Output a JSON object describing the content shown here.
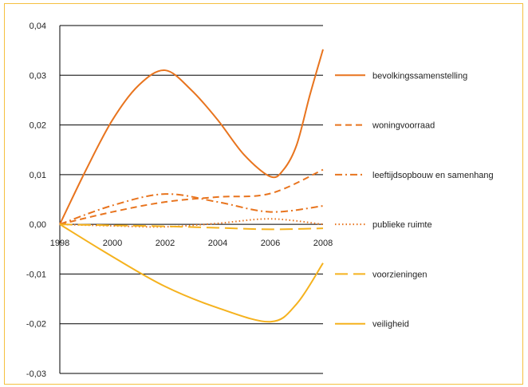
{
  "chart_data": {
    "type": "line",
    "title": "",
    "xlabel": "",
    "ylabel": "",
    "x": [
      1998,
      2000,
      2002,
      2004,
      2006,
      2008
    ],
    "x_tick_labels": [
      "1998",
      "2000",
      "2002",
      "2004",
      "2006",
      "2008"
    ],
    "xlim": [
      1998,
      2008
    ],
    "ylim": [
      -0.03,
      0.04
    ],
    "y_ticks": [
      0.04,
      0.03,
      0.02,
      0.01,
      0.0,
      -0.01,
      -0.02,
      -0.03
    ],
    "y_tick_labels": [
      "0,04",
      "0,03",
      "0,02",
      "0,01",
      "0,00",
      "-0,01",
      "-0,02",
      "-0,03"
    ],
    "grid": "horizontal",
    "legend_position": "right",
    "series": [
      {
        "name": "bevolkingssamenstelling",
        "color": "#e8741e",
        "dash": "solid",
        "points": [
          [
            1998,
            0.0
          ],
          [
            1999,
            0.011
          ],
          [
            2000,
            0.021
          ],
          [
            2001,
            0.028
          ],
          [
            2002,
            0.031
          ],
          [
            2003,
            0.027
          ],
          [
            2004,
            0.021
          ],
          [
            2005,
            0.014
          ],
          [
            2006,
            0.0096
          ],
          [
            2006.5,
            0.011
          ],
          [
            2007,
            0.016
          ],
          [
            2007.5,
            0.026
          ],
          [
            2008,
            0.0352
          ]
        ]
      },
      {
        "name": "woningvoorraad",
        "color": "#e8741e",
        "dash": "dashed",
        "points": [
          [
            1998,
            0.0
          ],
          [
            2000,
            0.0025
          ],
          [
            2002,
            0.0045
          ],
          [
            2004,
            0.0055
          ],
          [
            2006,
            0.0062
          ],
          [
            2008,
            0.011
          ]
        ]
      },
      {
        "name": "leeftijdsopbouw en samenhang",
        "color": "#e8741e",
        "dash": "dashdot",
        "points": [
          [
            1998,
            0.0
          ],
          [
            2000,
            0.0038
          ],
          [
            2002,
            0.0061
          ],
          [
            2004,
            0.0045
          ],
          [
            2006,
            0.0025
          ],
          [
            2008,
            0.0037
          ]
        ]
      },
      {
        "name": "publieke ruimte",
        "color": "#e8741e",
        "dash": "dotted",
        "points": [
          [
            1998,
            0.0
          ],
          [
            2000,
            -0.0003
          ],
          [
            2002,
            -0.0005
          ],
          [
            2004,
            0.0002
          ],
          [
            2006,
            0.0011
          ],
          [
            2008,
            0.0
          ]
        ]
      },
      {
        "name": "voorzieningen",
        "color": "#f5b21e",
        "dash": "longdash",
        "points": [
          [
            1998,
            0.0
          ],
          [
            2000,
            -0.0002
          ],
          [
            2002,
            -0.0004
          ],
          [
            2004,
            -0.0007
          ],
          [
            2006,
            -0.001
          ],
          [
            2008,
            -0.0008
          ]
        ]
      },
      {
        "name": "veiligheid",
        "color": "#f5b21e",
        "dash": "solid",
        "points": [
          [
            1998,
            0.0
          ],
          [
            2000,
            -0.0065
          ],
          [
            2002,
            -0.0125
          ],
          [
            2004,
            -0.0168
          ],
          [
            2006,
            -0.0196
          ],
          [
            2007,
            -0.016
          ],
          [
            2008,
            -0.0078
          ]
        ]
      }
    ]
  }
}
